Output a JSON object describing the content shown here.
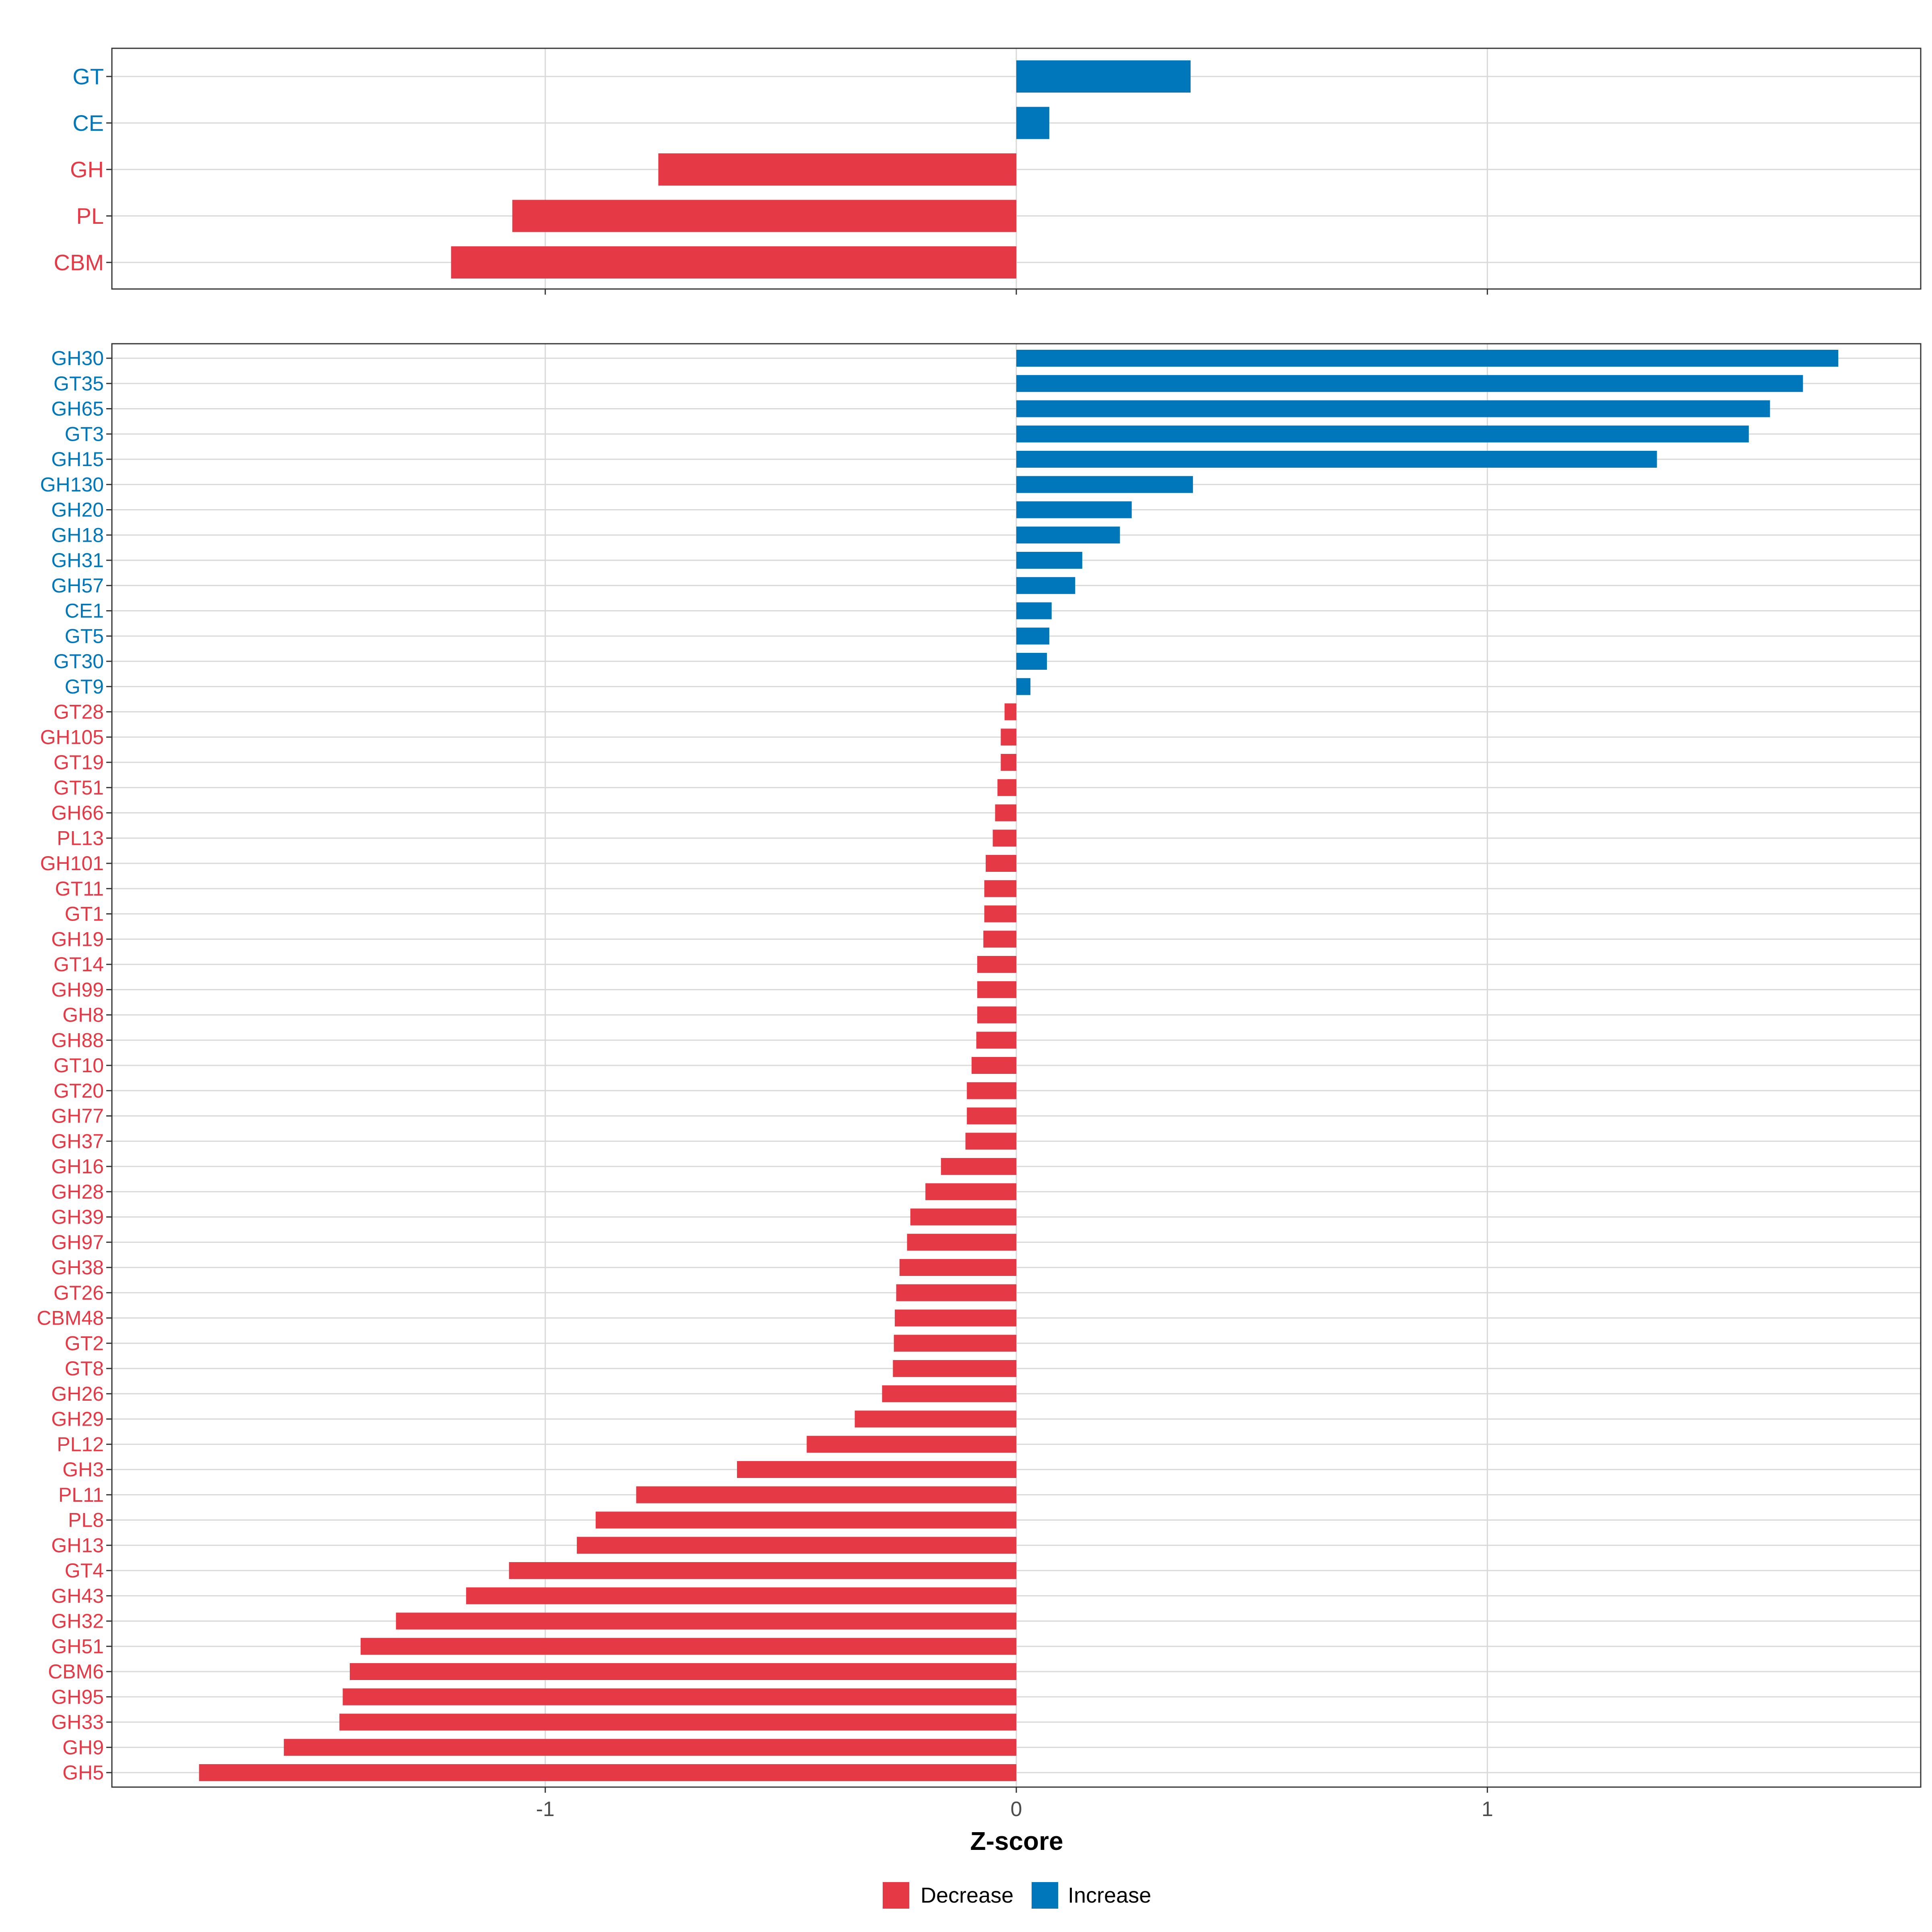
{
  "colors": {
    "decrease": "#E63946",
    "increase": "#0077BB",
    "grid": "#D9D9D9",
    "frame": "#333333",
    "tick_text": "#4D4D4D",
    "title_text": "#000000"
  },
  "chart_data": [
    {
      "type": "bar",
      "orientation": "horizontal",
      "panel": "top",
      "categories": [
        "GT",
        "CE",
        "GH",
        "PL",
        "CBM"
      ],
      "values": [
        0.37,
        0.07,
        -0.76,
        -1.07,
        -1.2
      ],
      "xlim": [
        -1.92,
        1.92
      ],
      "xticks": [
        -1,
        0,
        1
      ],
      "xticklabels": [
        "-1",
        "0",
        "1"
      ],
      "show_x_ticklabels": false,
      "grid": true
    },
    {
      "type": "bar",
      "orientation": "horizontal",
      "panel": "bottom",
      "categories": [
        "GH30",
        "GT35",
        "GH65",
        "GT3",
        "GH15",
        "GH130",
        "GH20",
        "GH18",
        "GH31",
        "GH57",
        "CE1",
        "GT5",
        "GT30",
        "GT9",
        "GT28",
        "GH105",
        "GT19",
        "GT51",
        "GH66",
        "PL13",
        "GH101",
        "GT11",
        "GT1",
        "GH19",
        "GT14",
        "GH99",
        "GH8",
        "GH88",
        "GT10",
        "GT20",
        "GH77",
        "GH37",
        "GH16",
        "GH28",
        "GH39",
        "GH97",
        "GH38",
        "GT26",
        "CBM48",
        "GT2",
        "GT8",
        "GH26",
        "GH29",
        "PL12",
        "GH3",
        "PL11",
        "PL8",
        "GH13",
        "GT4",
        "GH43",
        "GH32",
        "GH51",
        "CBM6",
        "GH95",
        "GH33",
        "GH9",
        "GH5"
      ],
      "values": [
        1.745,
        1.67,
        1.6,
        1.555,
        1.36,
        0.375,
        0.245,
        0.22,
        0.14,
        0.125,
        0.075,
        0.07,
        0.065,
        0.03,
        -0.025,
        -0.033,
        -0.033,
        -0.04,
        -0.045,
        -0.05,
        -0.065,
        -0.068,
        -0.068,
        -0.07,
        -0.083,
        -0.083,
        -0.083,
        -0.085,
        -0.095,
        -0.105,
        -0.105,
        -0.108,
        -0.16,
        -0.193,
        -0.225,
        -0.232,
        -0.248,
        -0.255,
        -0.258,
        -0.26,
        -0.262,
        -0.285,
        -0.343,
        -0.445,
        -0.593,
        -0.807,
        -0.893,
        -0.933,
        -1.077,
        -1.168,
        -1.317,
        -1.392,
        -1.415,
        -1.43,
        -1.437,
        -1.555,
        -1.735
      ],
      "xlim": [
        -1.92,
        1.92
      ],
      "xticks": [
        -1,
        0,
        1
      ],
      "xticklabels": [
        "-1",
        "0",
        "1"
      ],
      "xlabel": "Z-score",
      "grid": true
    }
  ],
  "legend": {
    "position": "bottom",
    "items": [
      {
        "label": "Decrease",
        "color": "#E63946"
      },
      {
        "label": "Increase",
        "color": "#0077BB"
      }
    ]
  }
}
